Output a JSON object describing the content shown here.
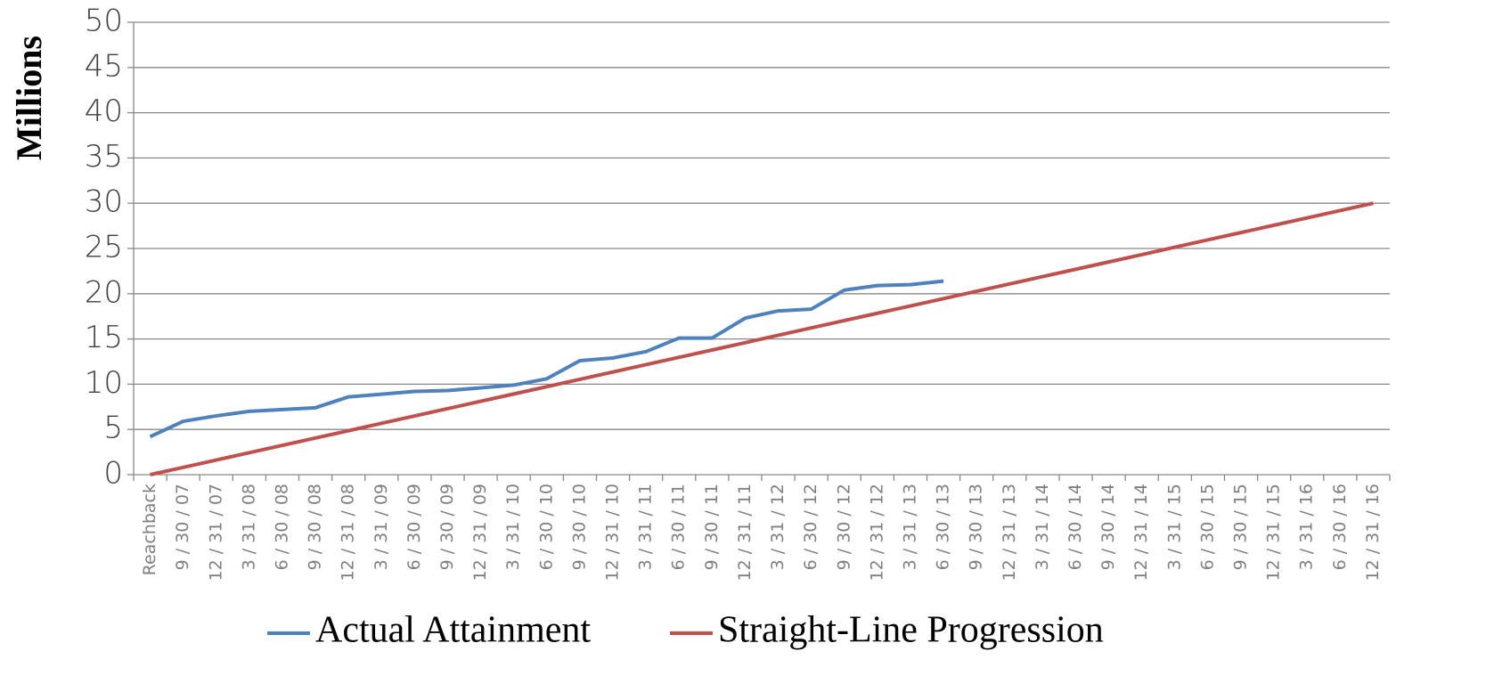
{
  "chart_data": {
    "type": "line",
    "y_label": "Millions",
    "categories": [
      "Reachback",
      "9 / 30 / 07",
      "12 / 31 / 07",
      "3 / 31 / 08",
      "6 / 30 / 08",
      "9 / 30 / 08",
      "12 / 31 / 08",
      "3 / 31 / 09",
      "6 / 30 / 09",
      "9 / 30 / 09",
      "12 / 31 / 09",
      "3 / 31 / 10",
      "6 / 30 / 10",
      "9 / 30 / 10",
      "12 / 31 / 10",
      "3 / 31 / 11",
      "6 / 30 / 11",
      "9 / 30 / 11",
      "12 / 31 / 11",
      "3 / 31 / 12",
      "6 / 30 / 12",
      "9 / 30 / 12",
      "12 / 31 / 12",
      "3 / 31 / 13",
      "6 / 30 / 13",
      "9 / 30 / 13",
      "12 / 31 / 13",
      "3 / 31 / 14",
      "6 / 30 / 14",
      "9 / 30 / 14",
      "12 / 31 / 14",
      "3 / 31 / 15",
      "6 / 30 / 15",
      "9 / 30 / 15",
      "12 / 31 / 15",
      "3 / 31 / 16",
      "6 / 30 / 16",
      "12 / 31 / 16"
    ],
    "series": [
      {
        "name": "Actual Attainment",
        "color": "#4f81bd",
        "values": [
          4.2,
          5.9,
          6.5,
          7.0,
          7.2,
          7.4,
          8.6,
          8.9,
          9.2,
          9.3,
          9.6,
          9.9,
          10.6,
          12.6,
          12.9,
          13.6,
          15.1,
          15.1,
          17.3,
          18.1,
          18.3,
          20.4,
          20.9,
          21.0,
          21.4,
          null,
          null,
          null,
          null,
          null,
          null,
          null,
          null,
          null,
          null,
          null,
          null,
          null
        ]
      },
      {
        "name": "Straight-Line Progression",
        "color": "#c0504d",
        "values": [
          0,
          0.81,
          1.62,
          2.43,
          3.24,
          4.05,
          4.86,
          5.68,
          6.49,
          7.3,
          8.11,
          8.92,
          9.73,
          10.54,
          11.35,
          12.16,
          12.97,
          13.78,
          14.59,
          15.41,
          16.22,
          17.03,
          17.84,
          18.65,
          19.46,
          20.27,
          21.08,
          21.89,
          22.7,
          23.51,
          24.32,
          25.14,
          25.95,
          26.76,
          27.57,
          28.38,
          29.19,
          30
        ]
      }
    ],
    "ylim": [
      0,
      50
    ],
    "yticks": [
      0,
      5,
      10,
      15,
      20,
      25,
      30,
      35,
      40,
      45,
      50
    ],
    "grid": true,
    "legend": "bottom"
  }
}
